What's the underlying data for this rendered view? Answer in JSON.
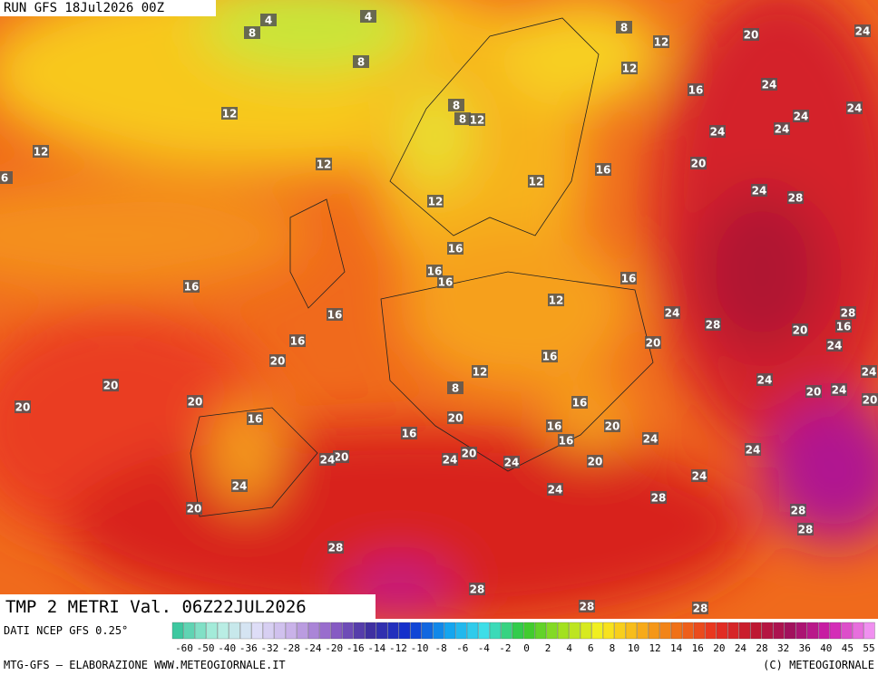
{
  "header": "RUN GFS 18Jul2026 00Z",
  "title": "TMP 2 METRI Val. 06Z22JUL2026",
  "source": "DATI NCEP GFS 0.25°",
  "footer_left": "MTG-GFS – ELABORAZIONE WWW.METEOGIORNALE.IT",
  "footer_right": "(C) METEOGIORNALE",
  "legend_labels": [
    -60,
    -50,
    -40,
    -36,
    -32,
    -28,
    -24,
    -20,
    -16,
    -14,
    -12,
    -10,
    -8,
    -6,
    -4,
    -2,
    0,
    2,
    4,
    6,
    8,
    10,
    12,
    14,
    16,
    20,
    24,
    28,
    32,
    36,
    40,
    45,
    55
  ],
  "map": {
    "labels": [
      4,
      4,
      8,
      8,
      8,
      12,
      12,
      20,
      24,
      12,
      8,
      8,
      12,
      16,
      24,
      24,
      24,
      24,
      24,
      12,
      12,
      16,
      20,
      6,
      12,
      24,
      28,
      12,
      16,
      16,
      16,
      16,
      16,
      12,
      24,
      28,
      28,
      16,
      20,
      16,
      16,
      20,
      24,
      16,
      20,
      24,
      12,
      24,
      20,
      8,
      20,
      24,
      20,
      20,
      20,
      16,
      16,
      20,
      16,
      20,
      16,
      16,
      24,
      24,
      20,
      24,
      20,
      24,
      24,
      20,
      24,
      24,
      24,
      28,
      28,
      20,
      28,
      28,
      28,
      28,
      28
    ]
  }
}
